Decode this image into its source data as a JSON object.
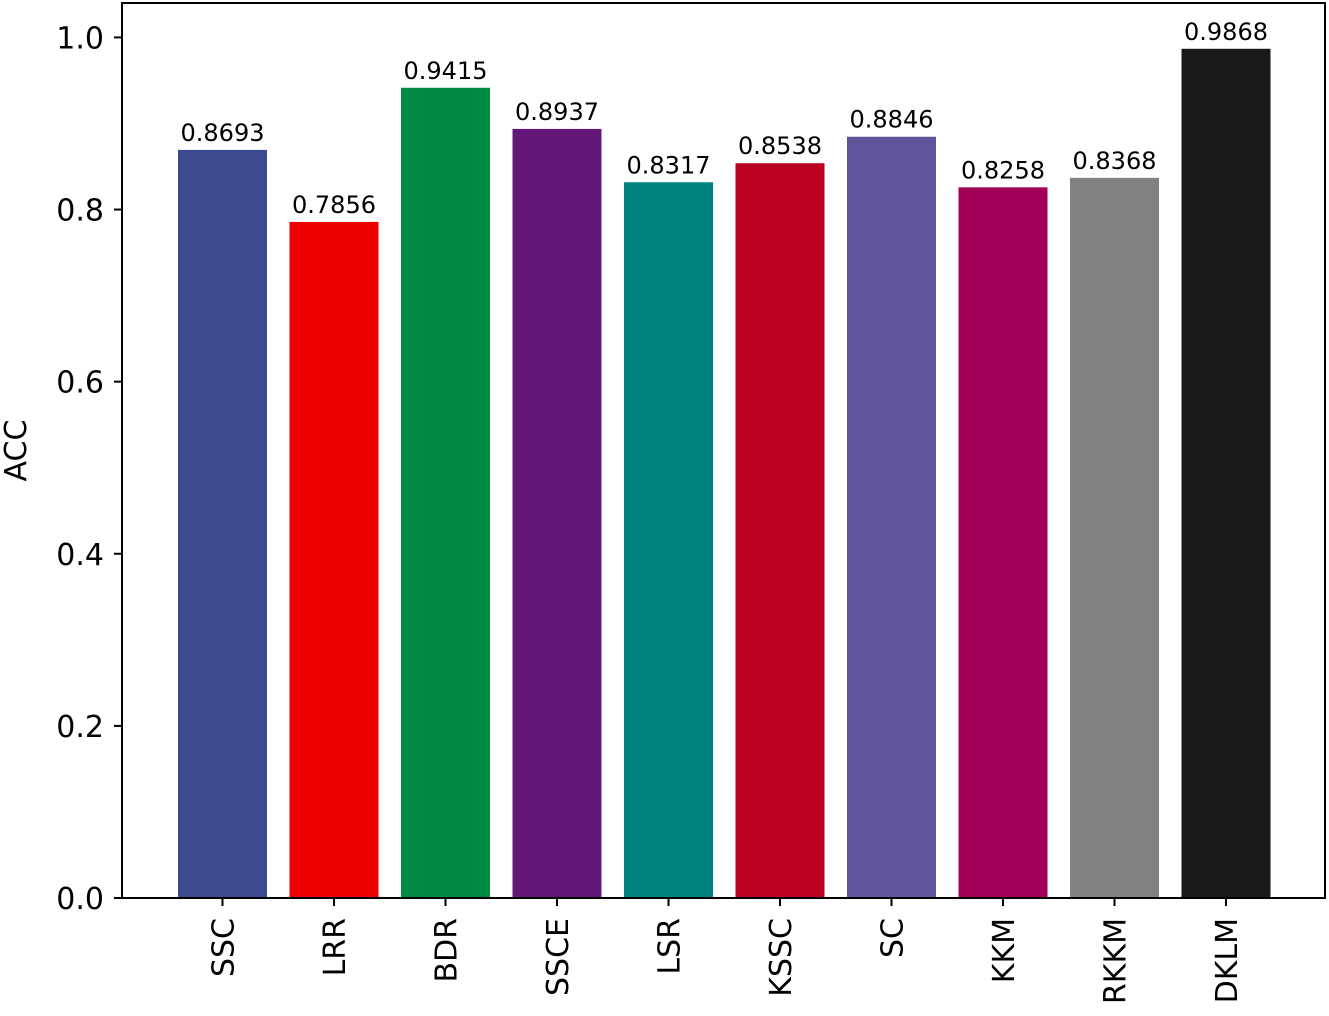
{
  "chart_data": {
    "type": "bar",
    "title": "",
    "xlabel": "",
    "ylabel": "ACC",
    "ylim": [
      0,
      1.04
    ],
    "yticks": [
      0.0,
      0.2,
      0.4,
      0.6,
      0.8,
      1.0
    ],
    "ytick_labels": [
      "0.0",
      "0.2",
      "0.4",
      "0.6",
      "0.8",
      "1.0"
    ],
    "grid": false,
    "legend": "none",
    "x_tick_rotation": "vertical",
    "categories": [
      "SSC",
      "LRR",
      "BDR",
      "SSCE",
      "LSR",
      "KSSC",
      "SC",
      "KKM",
      "RKKM",
      "DKLM"
    ],
    "values": [
      0.8693,
      0.7856,
      0.9415,
      0.8937,
      0.8317,
      0.8538,
      0.8846,
      0.8258,
      0.8368,
      0.9868
    ],
    "value_labels": [
      "0.8693",
      "0.7856",
      "0.9415",
      "0.8937",
      "0.8317",
      "0.8538",
      "0.8846",
      "0.8258",
      "0.8368",
      "0.9868"
    ],
    "colors": [
      "#3c4a90",
      "#ee0000",
      "#008b45",
      "#631879",
      "#008280",
      "#bb0021",
      "#5f559b",
      "#a20056",
      "#808180",
      "#1b1919"
    ]
  }
}
